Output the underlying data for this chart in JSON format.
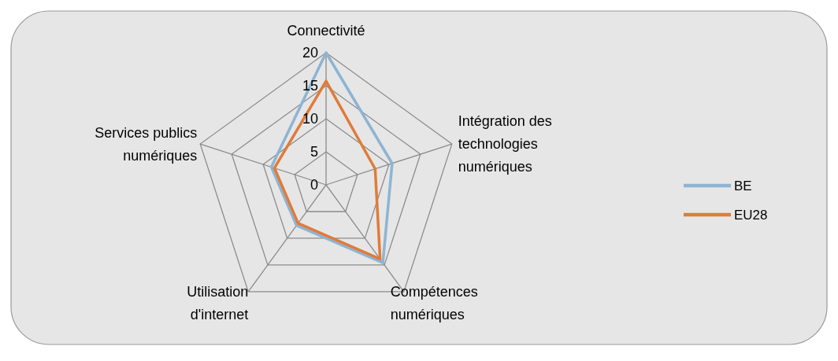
{
  "chart_data": {
    "type": "radar",
    "categories": [
      "Connectivité",
      "Intégration des technologies numériques",
      "Compétences numériques",
      "Utilisation d'internet",
      "Services publics numériques"
    ],
    "series": [
      {
        "name": "BE",
        "color": "#8eb4d3",
        "values": [
          20,
          10.5,
          14.6,
          7.6,
          8.7
        ]
      },
      {
        "name": "EU28",
        "color": "#e07b39",
        "values": [
          15.7,
          7.8,
          13.9,
          7.2,
          8.2
        ]
      }
    ],
    "ylim": [
      0,
      20
    ],
    "yticks": [
      0,
      5,
      10,
      15,
      20
    ],
    "grid": true,
    "legend": "right"
  }
}
